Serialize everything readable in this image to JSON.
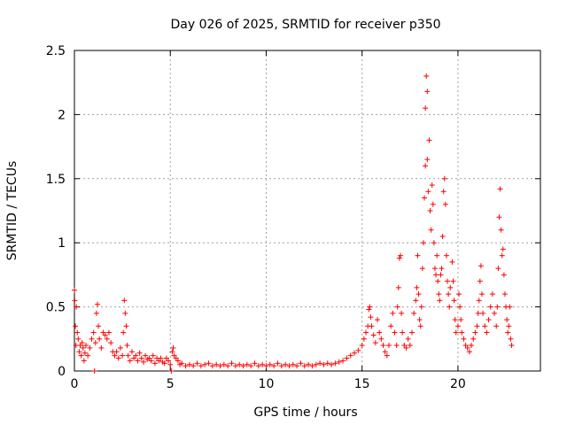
{
  "chart_data": {
    "type": "scatter",
    "title": "Day 026 of 2025, SRMTID for receiver p350",
    "xlabel": "GPS time / hours",
    "ylabel": "SRMTID / TECUs",
    "xlim": [
      0,
      24.3
    ],
    "ylim": [
      0,
      2.5
    ],
    "xticks": [
      0,
      5,
      10,
      15,
      20
    ],
    "xtick_labels": [
      "0",
      "5",
      "10",
      "15",
      "20"
    ],
    "yticks": [
      0,
      0.5,
      1,
      1.5,
      2,
      2.5
    ],
    "ytick_labels": [
      "0",
      "0.5",
      "1",
      "1.5",
      "2",
      "2.5"
    ],
    "grid": true,
    "marker": "+",
    "color": "#ff0000",
    "series": [
      {
        "name": "SRMTID",
        "points": [
          [
            0.0,
            0.63
          ],
          [
            0.02,
            0.55
          ],
          [
            0.05,
            0.35
          ],
          [
            0.08,
            0.2
          ],
          [
            0.1,
            0.5
          ],
          [
            0.15,
            0.3
          ],
          [
            0.2,
            0.25
          ],
          [
            0.25,
            0.15
          ],
          [
            0.3,
            0.2
          ],
          [
            0.35,
            0.12
          ],
          [
            0.4,
            0.22
          ],
          [
            0.45,
            0.18
          ],
          [
            0.5,
            0.08
          ],
          [
            0.55,
            0.14
          ],
          [
            0.6,
            0.2
          ],
          [
            0.7,
            0.12
          ],
          [
            0.8,
            0.18
          ],
          [
            0.9,
            0.25
          ],
          [
            1.0,
            0.3
          ],
          [
            1.05,
            0.0
          ],
          [
            1.1,
            0.22
          ],
          [
            1.15,
            0.45
          ],
          [
            1.2,
            0.52
          ],
          [
            1.25,
            0.35
          ],
          [
            1.3,
            0.25
          ],
          [
            1.4,
            0.18
          ],
          [
            1.5,
            0.3
          ],
          [
            1.6,
            0.28
          ],
          [
            1.7,
            0.25
          ],
          [
            1.8,
            0.3
          ],
          [
            1.9,
            0.22
          ],
          [
            2.0,
            0.15
          ],
          [
            2.1,
            0.12
          ],
          [
            2.2,
            0.15
          ],
          [
            2.3,
            0.1
          ],
          [
            2.4,
            0.18
          ],
          [
            2.5,
            0.12
          ],
          [
            2.55,
            0.3
          ],
          [
            2.6,
            0.55
          ],
          [
            2.65,
            0.45
          ],
          [
            2.7,
            0.35
          ],
          [
            2.75,
            0.2
          ],
          [
            2.8,
            0.12
          ],
          [
            2.9,
            0.08
          ],
          [
            3.0,
            0.15
          ],
          [
            3.1,
            0.1
          ],
          [
            3.2,
            0.12
          ],
          [
            3.3,
            0.08
          ],
          [
            3.4,
            0.14
          ],
          [
            3.5,
            0.1
          ],
          [
            3.6,
            0.07
          ],
          [
            3.7,
            0.12
          ],
          [
            3.8,
            0.09
          ],
          [
            3.9,
            0.1
          ],
          [
            4.0,
            0.08
          ],
          [
            4.1,
            0.12
          ],
          [
            4.2,
            0.06
          ],
          [
            4.3,
            0.1
          ],
          [
            4.4,
            0.08
          ],
          [
            4.5,
            0.1
          ],
          [
            4.6,
            0.07
          ],
          [
            4.7,
            0.06
          ],
          [
            4.8,
            0.1
          ],
          [
            4.9,
            0.08
          ],
          [
            5.0,
            0.05
          ],
          [
            5.05,
            0.0
          ],
          [
            5.1,
            0.15
          ],
          [
            5.15,
            0.18
          ],
          [
            5.2,
            0.12
          ],
          [
            5.3,
            0.1
          ],
          [
            5.4,
            0.08
          ],
          [
            5.5,
            0.05
          ],
          [
            5.6,
            0.06
          ],
          [
            5.8,
            0.04
          ],
          [
            6.0,
            0.05
          ],
          [
            6.2,
            0.04
          ],
          [
            6.4,
            0.06
          ],
          [
            6.6,
            0.04
          ],
          [
            6.8,
            0.05
          ],
          [
            7.0,
            0.06
          ],
          [
            7.2,
            0.04
          ],
          [
            7.4,
            0.05
          ],
          [
            7.6,
            0.04
          ],
          [
            7.8,
            0.05
          ],
          [
            8.0,
            0.04
          ],
          [
            8.2,
            0.06
          ],
          [
            8.4,
            0.04
          ],
          [
            8.6,
            0.05
          ],
          [
            8.8,
            0.04
          ],
          [
            9.0,
            0.05
          ],
          [
            9.2,
            0.04
          ],
          [
            9.4,
            0.06
          ],
          [
            9.6,
            0.04
          ],
          [
            9.8,
            0.05
          ],
          [
            10.0,
            0.04
          ],
          [
            10.2,
            0.05
          ],
          [
            10.4,
            0.04
          ],
          [
            10.6,
            0.06
          ],
          [
            10.8,
            0.04
          ],
          [
            11.0,
            0.05
          ],
          [
            11.2,
            0.04
          ],
          [
            11.4,
            0.05
          ],
          [
            11.6,
            0.04
          ],
          [
            11.8,
            0.06
          ],
          [
            12.0,
            0.04
          ],
          [
            12.2,
            0.05
          ],
          [
            12.4,
            0.04
          ],
          [
            12.6,
            0.05
          ],
          [
            12.8,
            0.06
          ],
          [
            13.0,
            0.05
          ],
          [
            13.2,
            0.06
          ],
          [
            13.4,
            0.05
          ],
          [
            13.6,
            0.06
          ],
          [
            13.8,
            0.07
          ],
          [
            14.0,
            0.08
          ],
          [
            14.2,
            0.1
          ],
          [
            14.4,
            0.12
          ],
          [
            14.6,
            0.14
          ],
          [
            14.8,
            0.16
          ],
          [
            15.0,
            0.2
          ],
          [
            15.1,
            0.25
          ],
          [
            15.2,
            0.3
          ],
          [
            15.3,
            0.35
          ],
          [
            15.35,
            0.48
          ],
          [
            15.4,
            0.5
          ],
          [
            15.45,
            0.42
          ],
          [
            15.5,
            0.35
          ],
          [
            15.6,
            0.28
          ],
          [
            15.7,
            0.22
          ],
          [
            15.8,
            0.4
          ],
          [
            15.9,
            0.3
          ],
          [
            16.0,
            0.25
          ],
          [
            16.1,
            0.2
          ],
          [
            16.2,
            0.15
          ],
          [
            16.3,
            0.12
          ],
          [
            16.4,
            0.2
          ],
          [
            16.5,
            0.35
          ],
          [
            16.6,
            0.45
          ],
          [
            16.7,
            0.3
          ],
          [
            16.8,
            0.2
          ],
          [
            16.85,
            0.5
          ],
          [
            16.9,
            0.65
          ],
          [
            16.95,
            0.88
          ],
          [
            17.0,
            0.9
          ],
          [
            17.05,
            0.45
          ],
          [
            17.1,
            0.3
          ],
          [
            17.2,
            0.2
          ],
          [
            17.3,
            0.18
          ],
          [
            17.4,
            0.25
          ],
          [
            17.5,
            0.2
          ],
          [
            17.6,
            0.3
          ],
          [
            17.7,
            0.45
          ],
          [
            17.8,
            0.55
          ],
          [
            17.85,
            0.65
          ],
          [
            17.9,
            0.9
          ],
          [
            17.95,
            0.6
          ],
          [
            18.0,
            0.4
          ],
          [
            18.05,
            0.35
          ],
          [
            18.1,
            0.5
          ],
          [
            18.15,
            0.8
          ],
          [
            18.2,
            1.0
          ],
          [
            18.25,
            1.35
          ],
          [
            18.3,
            1.6
          ],
          [
            18.3,
            2.05
          ],
          [
            18.35,
            2.3
          ],
          [
            18.4,
            2.18
          ],
          [
            18.4,
            1.65
          ],
          [
            18.45,
            1.4
          ],
          [
            18.5,
            1.8
          ],
          [
            18.55,
            1.25
          ],
          [
            18.6,
            1.1
          ],
          [
            18.65,
            1.45
          ],
          [
            18.7,
            1.3
          ],
          [
            18.75,
            1.0
          ],
          [
            18.8,
            0.8
          ],
          [
            18.85,
            0.75
          ],
          [
            18.9,
            0.9
          ],
          [
            18.95,
            0.7
          ],
          [
            19.0,
            0.6
          ],
          [
            19.05,
            0.55
          ],
          [
            19.1,
            0.75
          ],
          [
            19.15,
            0.8
          ],
          [
            19.2,
            1.05
          ],
          [
            19.25,
            1.4
          ],
          [
            19.3,
            1.5
          ],
          [
            19.35,
            1.3
          ],
          [
            19.4,
            0.9
          ],
          [
            19.45,
            0.7
          ],
          [
            19.5,
            0.6
          ],
          [
            19.55,
            0.5
          ],
          [
            19.6,
            0.65
          ],
          [
            19.7,
            0.85
          ],
          [
            19.75,
            0.7
          ],
          [
            19.8,
            0.55
          ],
          [
            19.85,
            0.4
          ],
          [
            19.9,
            0.3
          ],
          [
            20.0,
            0.35
          ],
          [
            20.05,
            0.6
          ],
          [
            20.1,
            0.5
          ],
          [
            20.15,
            0.4
          ],
          [
            20.2,
            0.3
          ],
          [
            20.3,
            0.25
          ],
          [
            20.4,
            0.2
          ],
          [
            20.5,
            0.18
          ],
          [
            20.6,
            0.15
          ],
          [
            20.7,
            0.2
          ],
          [
            20.8,
            0.25
          ],
          [
            20.9,
            0.3
          ],
          [
            21.0,
            0.35
          ],
          [
            21.05,
            0.45
          ],
          [
            21.1,
            0.55
          ],
          [
            21.15,
            0.7
          ],
          [
            21.2,
            0.82
          ],
          [
            21.25,
            0.6
          ],
          [
            21.3,
            0.45
          ],
          [
            21.4,
            0.35
          ],
          [
            21.5,
            0.3
          ],
          [
            21.6,
            0.4
          ],
          [
            21.7,
            0.5
          ],
          [
            21.8,
            0.6
          ],
          [
            21.9,
            0.45
          ],
          [
            22.0,
            0.35
          ],
          [
            22.05,
            0.5
          ],
          [
            22.1,
            0.8
          ],
          [
            22.15,
            1.2
          ],
          [
            22.2,
            1.42
          ],
          [
            22.25,
            1.1
          ],
          [
            22.3,
            0.9
          ],
          [
            22.35,
            0.95
          ],
          [
            22.4,
            0.75
          ],
          [
            22.45,
            0.6
          ],
          [
            22.5,
            0.5
          ],
          [
            22.55,
            0.4
          ],
          [
            22.6,
            0.3
          ],
          [
            22.65,
            0.35
          ],
          [
            22.7,
            0.5
          ],
          [
            22.75,
            0.25
          ],
          [
            22.8,
            0.2
          ]
        ]
      }
    ]
  }
}
